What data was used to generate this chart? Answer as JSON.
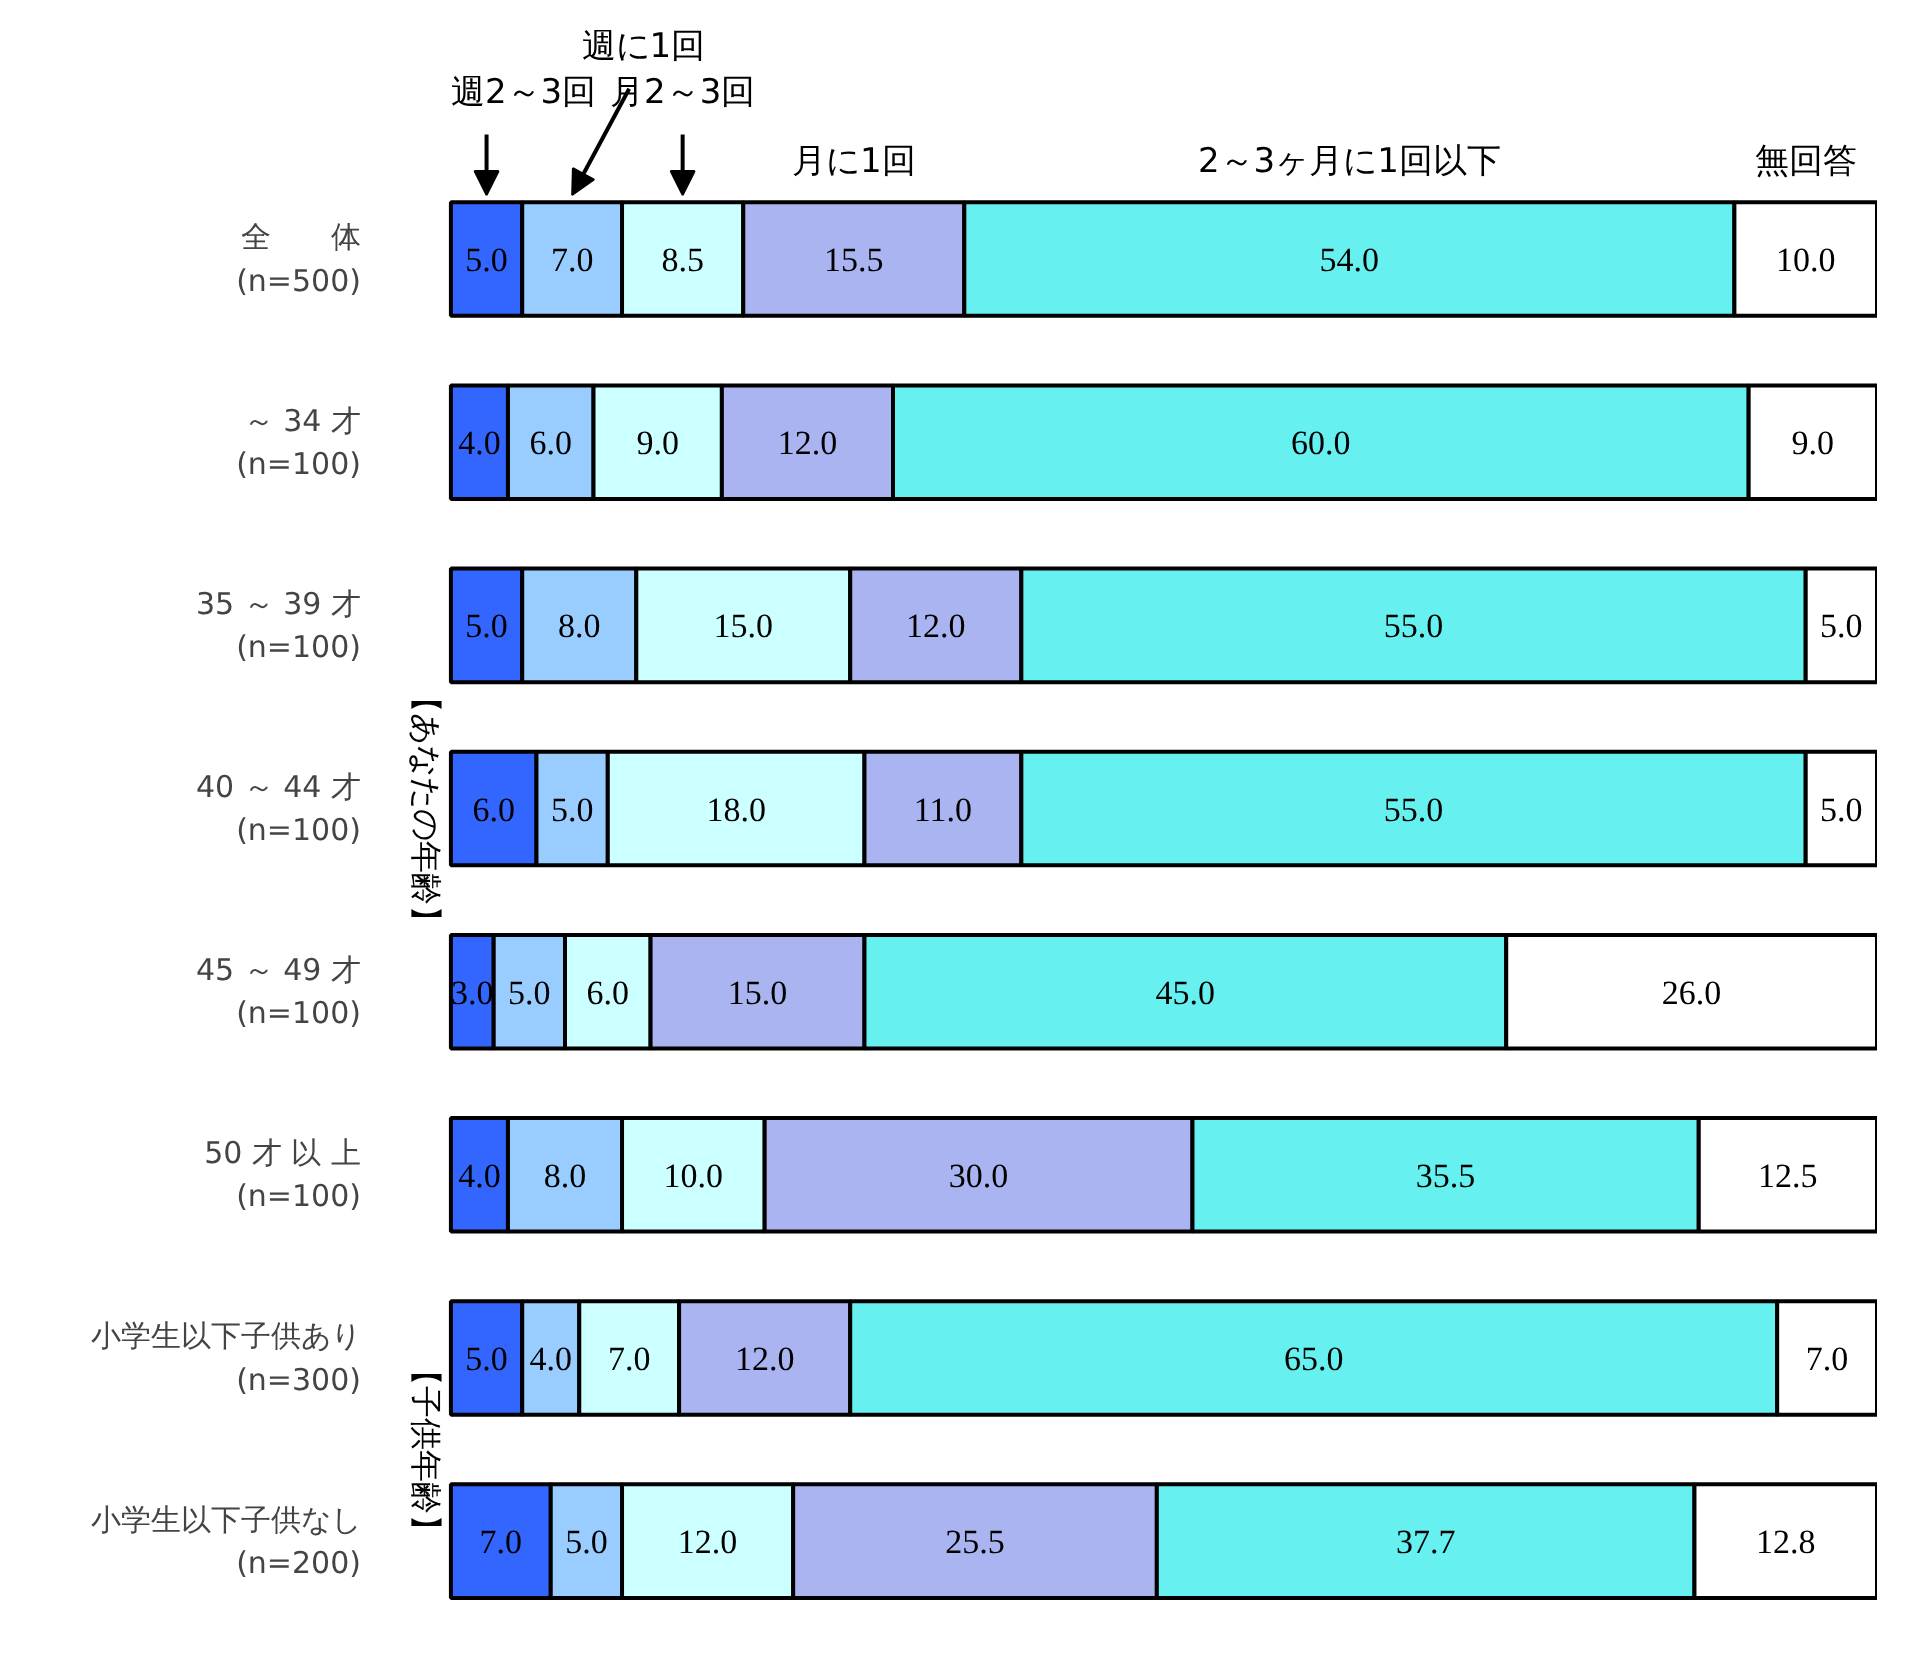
{
  "chart_data": {
    "type": "bar",
    "orientation": "horizontal",
    "stacked": true,
    "categories": [
      "全　　体\n(n=500)",
      "～ 34 才\n(n=100)",
      "35 ～ 39 才\n(n=100)",
      "40 ～ 44 才\n(n=100)",
      "45 ～ 49 才\n(n=100)",
      "50 才 以 上\n(n=100)",
      "小学生以下子供あり\n(n=300)",
      "小学生以下子供なし\n(n=200)"
    ],
    "series": [
      {
        "name": "週2～3回",
        "color": "#3366ff",
        "values": [
          5.0,
          4.0,
          5.0,
          6.0,
          3.0,
          4.0,
          5.0,
          7.0
        ],
        "value_labels": [
          "5.0",
          "4.0",
          "5.0",
          "6.0",
          "3.0",
          "4.0",
          "5.0",
          "7.0"
        ]
      },
      {
        "name": "週に1回",
        "color": "#99ccff",
        "values": [
          7.0,
          6.0,
          8.0,
          5.0,
          5.0,
          8.0,
          4.0,
          5.0
        ],
        "value_labels": [
          "7.0",
          "6.0",
          "8.0",
          "5.0",
          "5.0",
          "8.0",
          "4.0",
          "5.0"
        ]
      },
      {
        "name": "月2～3回",
        "color": "#ccffff",
        "values": [
          8.5,
          9.0,
          15.0,
          18.0,
          6.0,
          10.0,
          7.0,
          12.0
        ],
        "value_labels": [
          "8.5",
          "9.0",
          "15.0",
          "18.0",
          "6.0",
          "10.0",
          "7.0",
          "12.0"
        ]
      },
      {
        "name": "月に1回",
        "color": "#aab4f0",
        "values": [
          15.5,
          12.0,
          12.0,
          11.0,
          15.0,
          30.0,
          12.0,
          25.5
        ],
        "value_labels": [
          "15.5",
          "12.0",
          "12.0",
          "11.0",
          "15.0",
          "30.0",
          "12.0",
          "25.5"
        ]
      },
      {
        "name": "2～3ヶ月に1回以下",
        "color": "#66f0f0",
        "values": [
          54.0,
          60.0,
          55.0,
          55.0,
          45.0,
          35.5,
          65.0,
          37.7
        ],
        "value_labels": [
          "54.0",
          "60.0",
          "55.0",
          "55.0",
          "45.0",
          "35.5",
          "65.0",
          "37.7"
        ]
      },
      {
        "name": "無回答",
        "color": "#ffffff",
        "values": [
          10.0,
          9.0,
          5.0,
          5.0,
          26.0,
          12.5,
          7.0,
          12.8
        ],
        "value_labels": [
          "10.0",
          "9.0",
          "5.0",
          "5.0",
          "26.0",
          "12.5",
          "7.0",
          "12.8"
        ]
      }
    ],
    "tick_labels": "y",
    "legend": "top",
    "annotations": [
      "【あなたの年齢】",
      "【子供年齢】"
    ]
  }
}
